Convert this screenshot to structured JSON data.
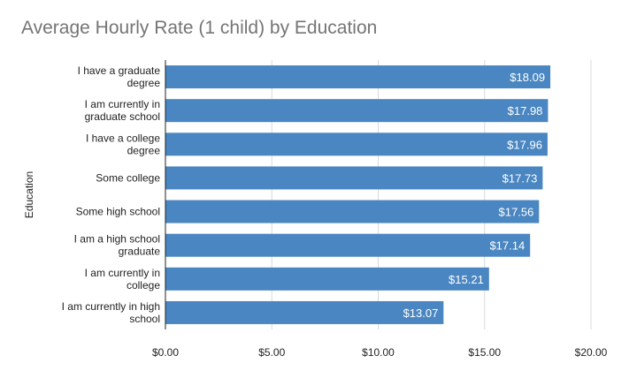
{
  "chart_data": {
    "type": "bar",
    "orientation": "horizontal",
    "title": "Average Hourly Rate (1 child) by Education",
    "xlabel": "",
    "ylabel": "Education",
    "categories": [
      [
        "I have a graduate",
        "degree"
      ],
      [
        "I am currently in",
        "graduate school"
      ],
      [
        "I have a college",
        "degree"
      ],
      [
        "Some college"
      ],
      [
        "Some high school"
      ],
      [
        "I am a high school",
        "graduate"
      ],
      [
        "I am currently in",
        "college"
      ],
      [
        "I am currently in high",
        "school"
      ]
    ],
    "values": [
      18.09,
      17.98,
      17.96,
      17.73,
      17.56,
      17.14,
      15.21,
      13.07
    ],
    "data_labels": [
      "$18.09",
      "$17.98",
      "$17.96",
      "$17.73",
      "$17.56",
      "$17.14",
      "$15.21",
      "$13.07"
    ],
    "xlim": [
      0,
      20
    ],
    "x_ticks": [
      0,
      5,
      10,
      15,
      20
    ],
    "x_tick_labels": [
      "$0.00",
      "$5.00",
      "$10.00",
      "$15.00",
      "$20.00"
    ],
    "grid": true,
    "colors": {
      "bar": "#4a86c1",
      "grid": "#d9d9d9",
      "axis": "#222222",
      "title": "#757575"
    }
  }
}
